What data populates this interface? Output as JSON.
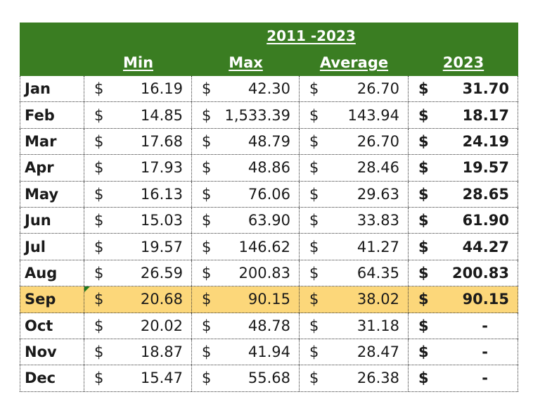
{
  "table": {
    "title": "2011 -2023",
    "headers": {
      "min": "Min",
      "max": "Max",
      "average": "Average",
      "current": "2023"
    },
    "currency": "$",
    "rows": [
      {
        "month": "Jan",
        "min": "16.19",
        "max": "42.30",
        "avg": "26.70",
        "cur": "31.70"
      },
      {
        "month": "Feb",
        "min": "14.85",
        "max": "1,533.39",
        "avg": "143.94",
        "cur": "18.17"
      },
      {
        "month": "Mar",
        "min": "17.68",
        "max": "48.79",
        "avg": "26.70",
        "cur": "24.19"
      },
      {
        "month": "Apr",
        "min": "17.93",
        "max": "48.86",
        "avg": "28.46",
        "cur": "19.57"
      },
      {
        "month": "May",
        "min": "16.13",
        "max": "76.06",
        "avg": "29.63",
        "cur": "28.65"
      },
      {
        "month": "Jun",
        "min": "15.03",
        "max": "63.90",
        "avg": "33.83",
        "cur": "61.90"
      },
      {
        "month": "Jul",
        "min": "19.57",
        "max": "146.62",
        "avg": "41.27",
        "cur": "44.27"
      },
      {
        "month": "Aug",
        "min": "26.59",
        "max": "200.83",
        "avg": "64.35",
        "cur": "200.83"
      },
      {
        "month": "Sep",
        "min": "20.68",
        "max": "90.15",
        "avg": "38.02",
        "cur": "90.15"
      },
      {
        "month": "Oct",
        "min": "20.02",
        "max": "48.78",
        "avg": "31.18",
        "cur": "-"
      },
      {
        "month": "Nov",
        "min": "18.87",
        "max": "41.94",
        "avg": "28.47",
        "cur": "-"
      },
      {
        "month": "Dec",
        "min": "15.47",
        "max": "55.68",
        "avg": "26.38",
        "cur": "-"
      }
    ],
    "highlight_row": 8,
    "colors": {
      "header_bg": "#3a7d22",
      "highlight_bg": "#fcd77a"
    }
  }
}
